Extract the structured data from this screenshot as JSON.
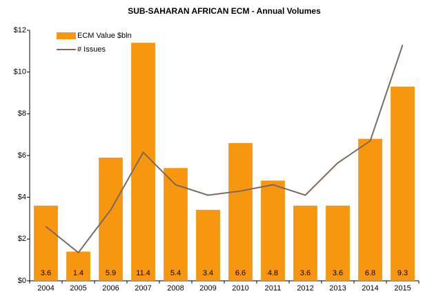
{
  "chart_data": {
    "type": "bar_line",
    "title": "SUB-SAHARAN AFRICAN ECM - Annual Volumes",
    "categories": [
      "2004",
      "2005",
      "2006",
      "2007",
      "2008",
      "2009",
      "2010",
      "2011",
      "2012",
      "2013",
      "2014",
      "2015"
    ],
    "series": [
      {
        "name": "ECM Value $bln",
        "color": "#f7960f",
        "kind": "bar",
        "values": [
          3.6,
          1.4,
          5.9,
          11.4,
          5.4,
          3.4,
          6.6,
          4.8,
          3.6,
          3.6,
          6.8,
          9.3
        ]
      },
      {
        "name": "# Issues",
        "color": "#7a6a5e",
        "kind": "line",
        "values": [
          2.6,
          1.35,
          3.4,
          6.15,
          4.6,
          4.1,
          4.3,
          4.6,
          4.1,
          5.65,
          6.7,
          11.3
        ]
      }
    ],
    "ylim": [
      0,
      12
    ],
    "yticks": [
      {
        "value": 0,
        "label": "$0"
      },
      {
        "value": 2,
        "label": "$2"
      },
      {
        "value": 4,
        "label": "$4"
      },
      {
        "value": 6,
        "label": "$6"
      },
      {
        "value": 8,
        "label": "$8"
      },
      {
        "value": 10,
        "label": "$10"
      },
      {
        "value": 12,
        "label": "$12"
      }
    ],
    "legend": "top-left"
  }
}
